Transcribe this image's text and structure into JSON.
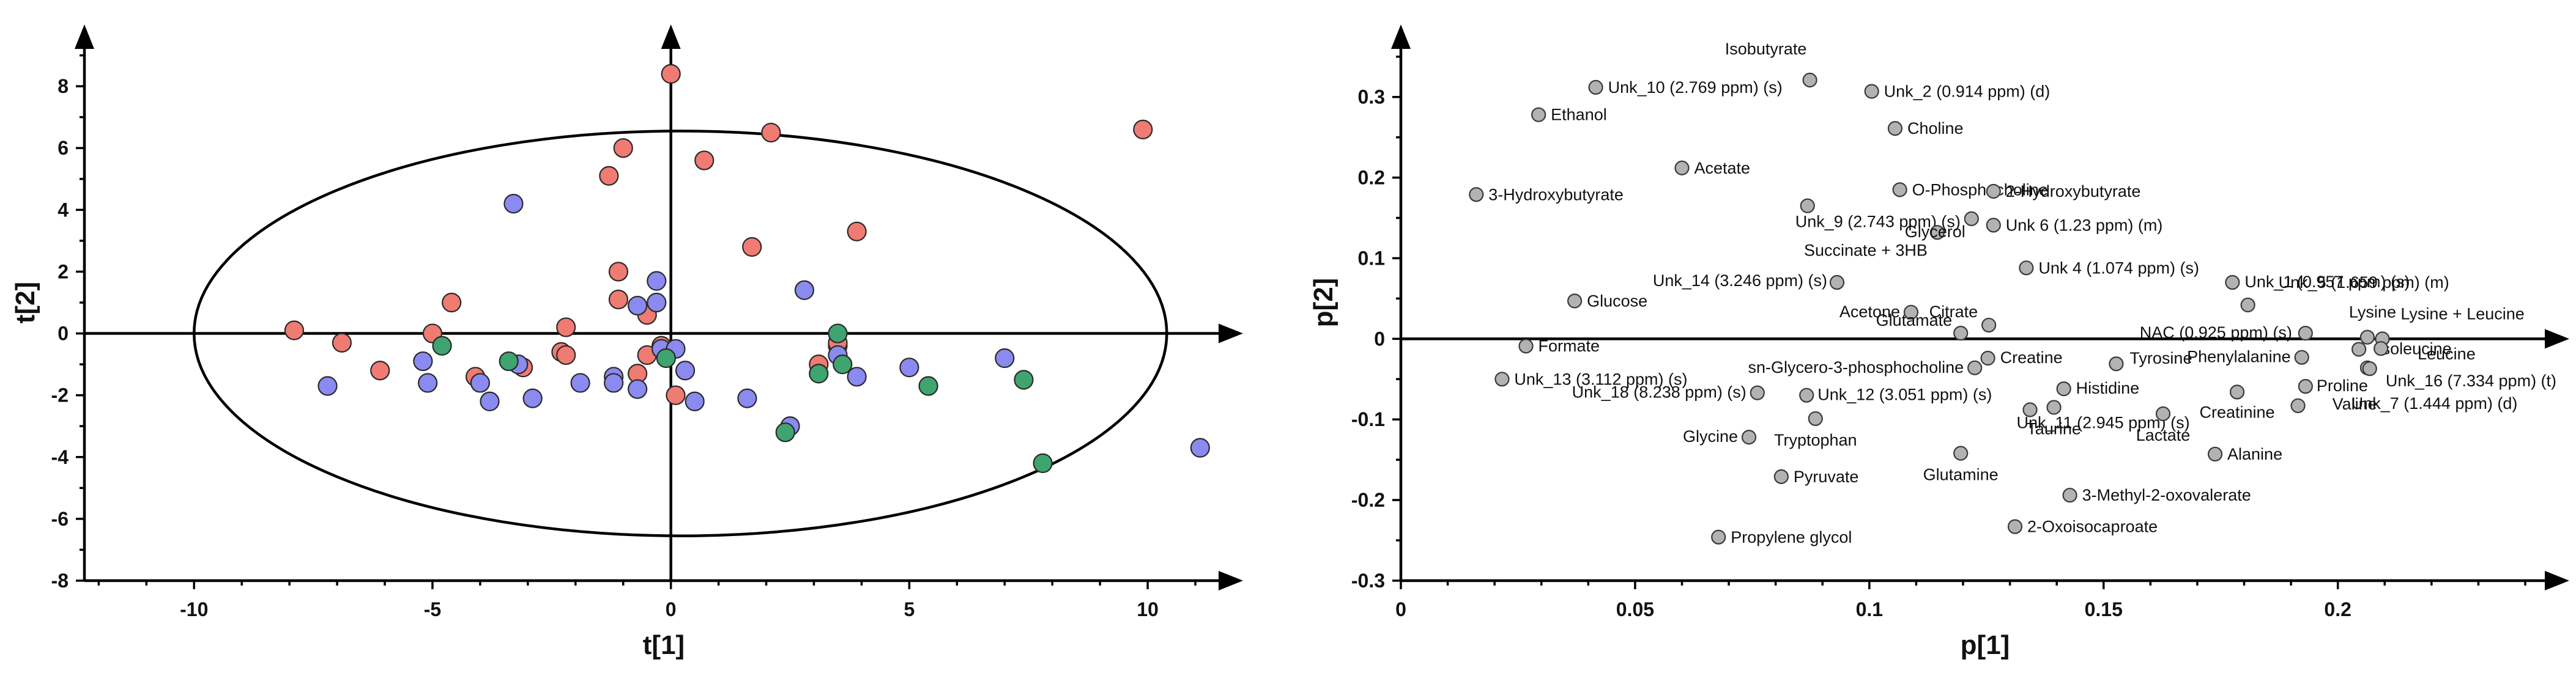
{
  "chart_data": [
    {
      "type": "scatter",
      "xlabel": "t[1]",
      "ylabel": "t[2]",
      "xlim": [
        -12.3,
        12.0
      ],
      "ylim": [
        -8.0,
        10.0
      ],
      "xticks": [
        -10,
        -5,
        0,
        5,
        10
      ],
      "yticks": [
        -8,
        -6,
        -4,
        -2,
        0,
        2,
        4,
        6,
        8
      ],
      "ellipse": {
        "cx": 0.2,
        "cy": 0.0,
        "rx": 10.2,
        "ry": 6.55
      },
      "colors": {
        "red": "#f07b72",
        "blue": "#8a8af0",
        "green": "#3fa46f"
      },
      "series": [
        {
          "color": "red",
          "points": [
            [
              -7.9,
              0.1
            ],
            [
              -6.9,
              -0.3
            ],
            [
              -6.1,
              -1.2
            ],
            [
              -5.0,
              0.0
            ],
            [
              -4.6,
              1.0
            ],
            [
              -4.1,
              -1.4
            ],
            [
              -3.1,
              -1.1
            ],
            [
              -2.2,
              0.2
            ],
            [
              -2.3,
              -0.6
            ],
            [
              -2.2,
              -0.7
            ],
            [
              -1.3,
              5.1
            ],
            [
              -1.0,
              6.0
            ],
            [
              -1.1,
              2.0
            ],
            [
              -1.1,
              1.1
            ],
            [
              -0.7,
              -1.3
            ],
            [
              -0.5,
              0.6
            ],
            [
              -0.5,
              -0.7
            ],
            [
              -0.2,
              -0.4
            ],
            [
              0.0,
              8.4
            ],
            [
              0.1,
              -2.0
            ],
            [
              0.7,
              5.6
            ],
            [
              1.7,
              2.8
            ],
            [
              2.1,
              6.5
            ],
            [
              3.1,
              -1.0
            ],
            [
              3.5,
              -0.4
            ],
            [
              3.5,
              -0.3
            ],
            [
              3.9,
              3.3
            ],
            [
              9.9,
              6.6
            ]
          ]
        },
        {
          "color": "blue",
          "points": [
            [
              -7.2,
              -1.7
            ],
            [
              -5.2,
              -0.9
            ],
            [
              -5.1,
              -1.6
            ],
            [
              -4.0,
              -1.6
            ],
            [
              -3.8,
              -2.2
            ],
            [
              -3.3,
              4.2
            ],
            [
              -3.2,
              -1.0
            ],
            [
              -2.9,
              -2.1
            ],
            [
              -1.9,
              -1.6
            ],
            [
              -1.2,
              -1.4
            ],
            [
              -1.2,
              -1.6
            ],
            [
              -0.7,
              0.9
            ],
            [
              -0.7,
              -1.8
            ],
            [
              -0.3,
              1.7
            ],
            [
              -0.3,
              1.0
            ],
            [
              -0.2,
              -0.5
            ],
            [
              0.1,
              -0.5
            ],
            [
              0.3,
              -1.2
            ],
            [
              0.5,
              -2.2
            ],
            [
              1.6,
              -2.1
            ],
            [
              2.5,
              -3.0
            ],
            [
              2.8,
              1.4
            ],
            [
              3.5,
              -0.7
            ],
            [
              3.9,
              -1.4
            ],
            [
              5.0,
              -1.1
            ],
            [
              7.0,
              -0.8
            ],
            [
              11.1,
              -3.7
            ]
          ]
        },
        {
          "color": "green",
          "points": [
            [
              -4.8,
              -0.4
            ],
            [
              -3.4,
              -0.9
            ],
            [
              -0.1,
              -0.8
            ],
            [
              2.4,
              -3.2
            ],
            [
              3.1,
              -1.3
            ],
            [
              3.5,
              0.0
            ],
            [
              3.6,
              -1.0
            ],
            [
              5.4,
              -1.7
            ],
            [
              7.4,
              -1.5
            ],
            [
              7.8,
              -4.2
            ]
          ]
        }
      ]
    },
    {
      "type": "scatter",
      "xlabel": "p[1]",
      "ylabel": "p[2]",
      "xlim": [
        0,
        0.2494
      ],
      "ylim": [
        -0.3,
        0.39
      ],
      "xticks": [
        0,
        0.05,
        0.1,
        0.15,
        0.2
      ],
      "ytick_labels": [
        "-0.3",
        "-0.2",
        "-0.1",
        "0",
        "0.1",
        "0.2",
        "0.3"
      ],
      "yticks": [
        -0.3,
        -0.2,
        -0.1,
        0,
        0.1,
        0.2,
        0.3
      ],
      "xtick_labels": [
        "0",
        "0.05",
        "0.1",
        "0.15",
        "0.2"
      ],
      "point_color": "#b2b2b2",
      "points": [
        {
          "x": 0.0416,
          "y": 0.312,
          "label": "Unk_10 (2.769 ppm) (s)"
        },
        {
          "x": 0.0873,
          "y": 0.321,
          "label": "Isobutyrate"
        },
        {
          "x": 0.1005,
          "y": 0.307,
          "label": "Unk_2 (0.914 ppm) (d)"
        },
        {
          "x": 0.0294,
          "y": 0.278,
          "label": "Ethanol"
        },
        {
          "x": 0.1055,
          "y": 0.261,
          "label": "Choline"
        },
        {
          "x": 0.06,
          "y": 0.212,
          "label": "Acetate"
        },
        {
          "x": 0.1065,
          "y": 0.185,
          "label": "O-Phosphocholine"
        },
        {
          "x": 0.0161,
          "y": 0.179,
          "label": "3-Hydroxybutyrate"
        },
        {
          "x": 0.1265,
          "y": 0.183,
          "label": "2-Hydroxybutyrate"
        },
        {
          "x": 0.0868,
          "y": 0.165,
          "label": "Unk_9 (2.743 ppm) (s)"
        },
        {
          "x": 0.1145,
          "y": 0.132,
          "label": "Succinate + 3HB"
        },
        {
          "x": 0.1265,
          "y": 0.141,
          "label": "Unk 6 (1.23  ppm) (m)"
        },
        {
          "x": 0.1218,
          "y": 0.149,
          "label": "Glycerol"
        },
        {
          "x": 0.1335,
          "y": 0.088,
          "label": "Unk 4 (1.074 ppm) (s)"
        },
        {
          "x": 0.0931,
          "y": 0.07,
          "label": "Unk_14 (3.246 ppm) (s)"
        },
        {
          "x": 0.1775,
          "y": 0.07,
          "label": "Unk_1 (0.957 ppm) (s)"
        },
        {
          "x": 0.1808,
          "y": 0.042,
          "label": "Unk_5 (1.659 ppm) (m)"
        },
        {
          "x": 0.0371,
          "y": 0.047,
          "label": "Glucose"
        },
        {
          "x": 0.1089,
          "y": 0.033,
          "label": "Acetone"
        },
        {
          "x": 0.1255,
          "y": 0.017,
          "label": "Citrate"
        },
        {
          "x": 0.1195,
          "y": 0.007,
          "label": "Glutamate"
        },
        {
          "x": 0.1931,
          "y": 0.007,
          "label": "NAC (0.925 ppm) (s)"
        },
        {
          "x": 0.2063,
          "y": 0.002,
          "label": "Lysine"
        },
        {
          "x": 0.2095,
          "y": 0.0,
          "label": "Lysine + Leucine"
        },
        {
          "x": 0.0267,
          "y": -0.009,
          "label": "Formate"
        },
        {
          "x": 0.2045,
          "y": -0.013,
          "label": "Isoleucine"
        },
        {
          "x": 0.2092,
          "y": -0.012,
          "label": "Leucine"
        },
        {
          "x": 0.1253,
          "y": -0.024,
          "label": "Creatine"
        },
        {
          "x": 0.1923,
          "y": -0.023,
          "label": "Phenylalanine"
        },
        {
          "x": 0.1225,
          "y": -0.036,
          "label": "sn-Glycero-3-phosphocholine"
        },
        {
          "x": 0.1527,
          "y": -0.031,
          "label": "Tyrosine"
        },
        {
          "x": 0.0216,
          "y": -0.05,
          "label": "Unk_13 (3.112 ppm) (s)"
        },
        {
          "x": 0.2063,
          "y": -0.036,
          "label": "Unk_16 (7.334 ppm) (t)"
        },
        {
          "x": 0.0761,
          "y": -0.067,
          "label": "Unk_18 (8.238 ppm) (s)"
        },
        {
          "x": 0.1415,
          "y": -0.062,
          "label": "Histidine"
        },
        {
          "x": 0.1785,
          "y": -0.066,
          "label": "Creatinine"
        },
        {
          "x": 0.1931,
          "y": -0.059,
          "label": "Proline"
        },
        {
          "x": 0.1915,
          "y": -0.083,
          "label": "Valine"
        },
        {
          "x": 0.0866,
          "y": -0.07,
          "label": "Unk_12 (3.051 ppm) (s)"
        },
        {
          "x": 0.1343,
          "y": -0.088,
          "label": "Unk_11 (2.945 ppm) (s)"
        },
        {
          "x": 0.1394,
          "y": -0.085,
          "label": "Taurine"
        },
        {
          "x": 0.1627,
          "y": -0.093,
          "label": "Lactate"
        },
        {
          "x": 0.0885,
          "y": -0.099,
          "label": "Tryptophan"
        },
        {
          "x": 0.0743,
          "y": -0.122,
          "label": "Glycine"
        },
        {
          "x": 0.1195,
          "y": -0.142,
          "label": "Glutamine"
        },
        {
          "x": 0.1738,
          "y": -0.143,
          "label": "Alanine"
        },
        {
          "x": 0.2068,
          "y": -0.037,
          "label": "Unk_7 (1.444 ppm) (d)"
        },
        {
          "x": 0.0812,
          "y": -0.171,
          "label": "Pyruvate"
        },
        {
          "x": 0.1428,
          "y": -0.194,
          "label": "3-Methyl-2-oxovalerate"
        },
        {
          "x": 0.0678,
          "y": -0.246,
          "label": "Propylene glycol"
        },
        {
          "x": 0.1311,
          "y": -0.233,
          "label": "2-Oxoisocaproate"
        }
      ]
    }
  ]
}
